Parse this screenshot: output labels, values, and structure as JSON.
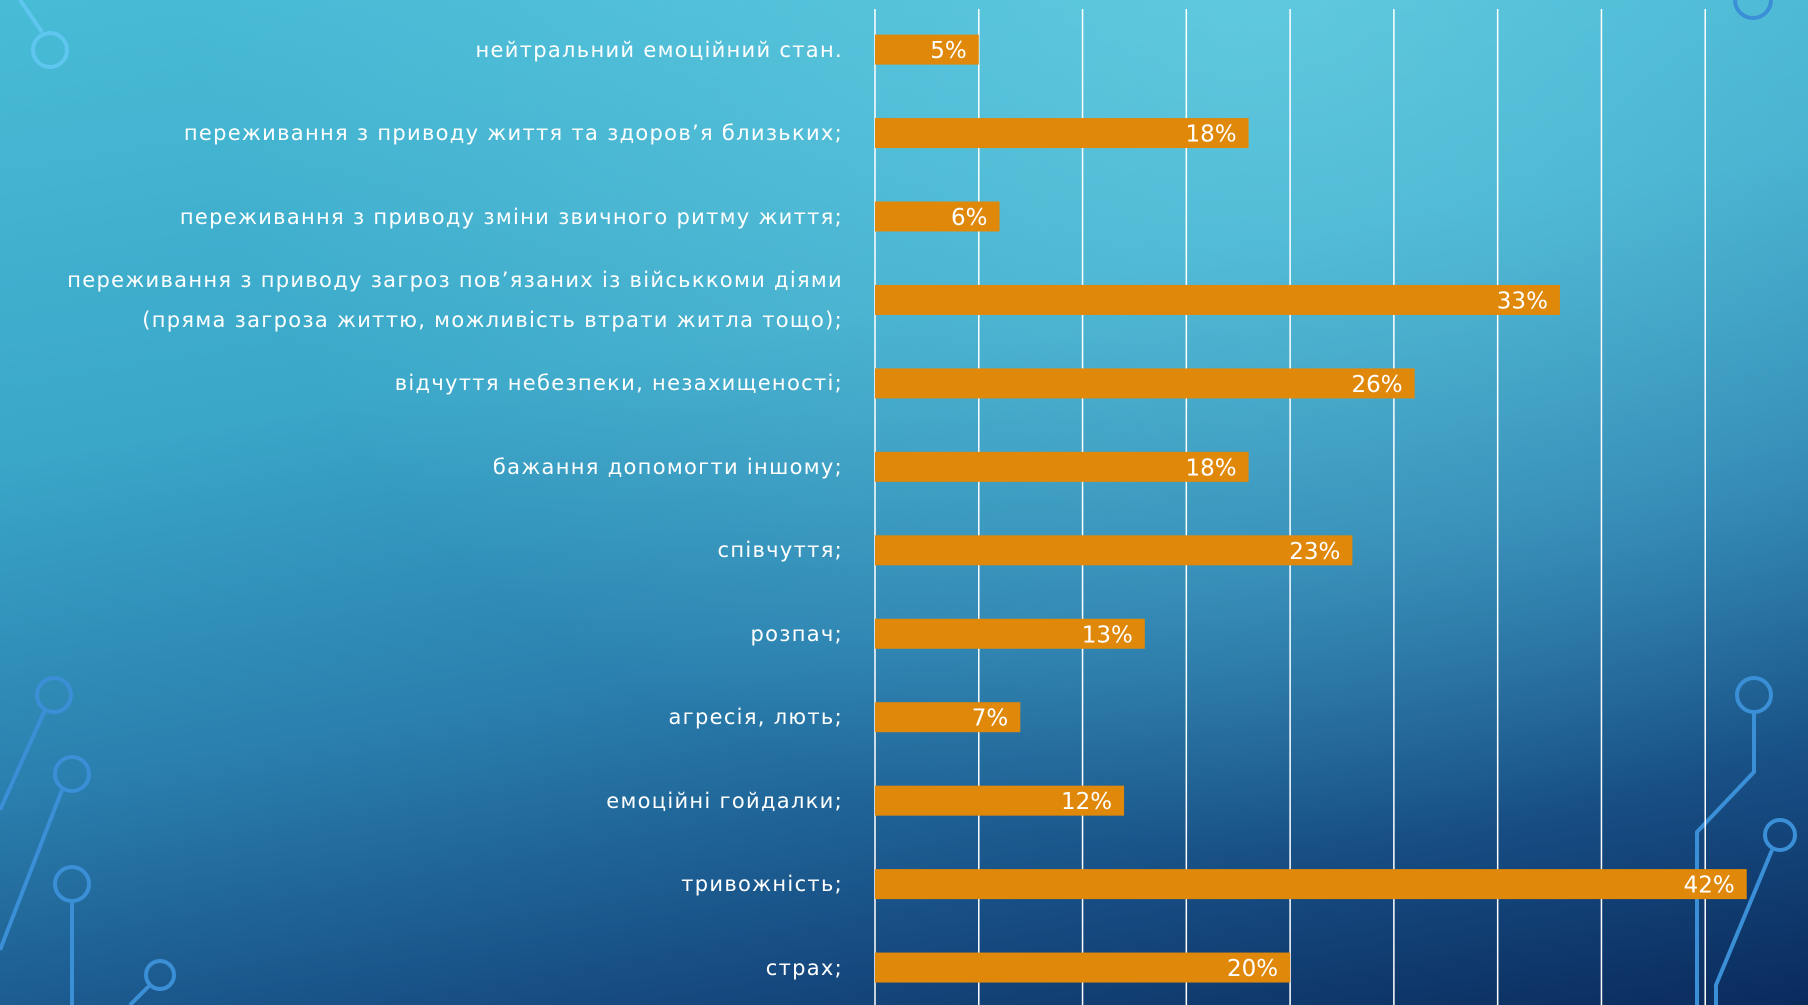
{
  "chart_data": {
    "type": "bar",
    "orientation": "horizontal",
    "categories": [
      "нейтральний емоційний стан.",
      "переживання з приводу життя та здоров’я близьких;",
      "переживання з приводу зміни звичного ритму життя;",
      "переживання з приводу загроз пов’язаних із військкоми діями\n(пряма загроза життю, можливість втрати житла тощо);",
      "відчуття небезпеки, незахищеності;",
      "бажання допомогти іншому;",
      "співчуття;",
      "розпач;",
      "агресія, лють;",
      "емоційні гойдалки;",
      "тривожність;",
      "страх;"
    ],
    "values": [
      5,
      18,
      6,
      33,
      26,
      18,
      23,
      13,
      7,
      12,
      42,
      20
    ],
    "value_labels": [
      "5%",
      "18%",
      "6%",
      "33%",
      "26%",
      "18%",
      "23%",
      "13%",
      "7%",
      "12%",
      "42%",
      "20%"
    ],
    "color": "#e0880a",
    "xlim": [
      0,
      45
    ],
    "xticks": [
      0,
      5,
      10,
      15,
      20,
      25,
      30,
      35,
      40
    ],
    "grid": true
  }
}
